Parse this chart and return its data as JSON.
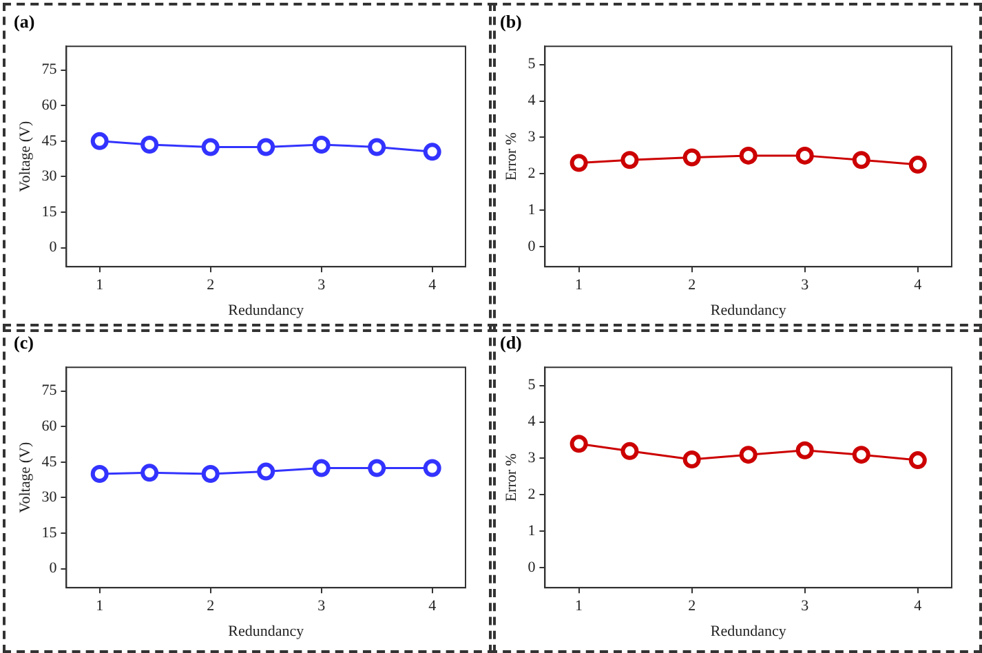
{
  "chart_data": [
    {
      "type": "line",
      "title": "(a)",
      "xlabel": "Redundancy",
      "ylabel": "Voltage (V)",
      "x": [
        1,
        1.45,
        2,
        2.5,
        3,
        3.5,
        4
      ],
      "series": [
        {
          "color": "#3333ff",
          "values": [
            45,
            43.5,
            42.5,
            42.5,
            43.5,
            42.5,
            40.5
          ]
        }
      ],
      "xlim": [
        0.7,
        4.3
      ],
      "xticks": [
        1,
        2,
        3,
        4
      ],
      "ylim": [
        -8,
        85
      ],
      "yticks": [
        0,
        15,
        30,
        45,
        60,
        75
      ],
      "grid": false,
      "legend": false,
      "marker": "circle",
      "line_style": "solid"
    },
    {
      "type": "line",
      "title": "(b)",
      "xlabel": "Redundancy",
      "ylabel": "Error %",
      "x": [
        1,
        1.45,
        2,
        2.5,
        3,
        3.5,
        4
      ],
      "series": [
        {
          "color": "#cc0000",
          "values": [
            2.3,
            2.38,
            2.45,
            2.5,
            2.5,
            2.38,
            2.25
          ]
        }
      ],
      "xlim": [
        0.7,
        4.3
      ],
      "xticks": [
        1,
        2,
        3,
        4
      ],
      "ylim": [
        -0.55,
        5.5
      ],
      "yticks": [
        0,
        1,
        2,
        3,
        4,
        5
      ],
      "grid": false,
      "legend": false,
      "marker": "circle",
      "line_style": "solid"
    },
    {
      "type": "line",
      "title": "(c)",
      "xlabel": "Redundancy",
      "ylabel": "Voltage (V)",
      "x": [
        1,
        1.45,
        2,
        2.5,
        3,
        3.5,
        4
      ],
      "series": [
        {
          "color": "#3333ff",
          "values": [
            40,
            40.5,
            40,
            41,
            42.5,
            42.5,
            42.5
          ]
        }
      ],
      "xlim": [
        0.7,
        4.3
      ],
      "xticks": [
        1,
        2,
        3,
        4
      ],
      "ylim": [
        -8,
        85
      ],
      "yticks": [
        0,
        15,
        30,
        45,
        60,
        75
      ],
      "grid": false,
      "legend": false,
      "marker": "circle",
      "line_style": "solid"
    },
    {
      "type": "line",
      "title": "(d)",
      "xlabel": "Redundancy",
      "ylabel": "Error %",
      "x": [
        1,
        1.45,
        2,
        2.5,
        3,
        3.5,
        4
      ],
      "series": [
        {
          "color": "#cc0000",
          "values": [
            3.4,
            3.2,
            2.97,
            3.1,
            3.22,
            3.1,
            2.95
          ]
        }
      ],
      "xlim": [
        0.7,
        4.3
      ],
      "xticks": [
        1,
        2,
        3,
        4
      ],
      "ylim": [
        -0.55,
        5.5
      ],
      "yticks": [
        0,
        1,
        2,
        3,
        4,
        5
      ],
      "grid": false,
      "legend": false,
      "marker": "circle",
      "line_style": "solid"
    }
  ]
}
